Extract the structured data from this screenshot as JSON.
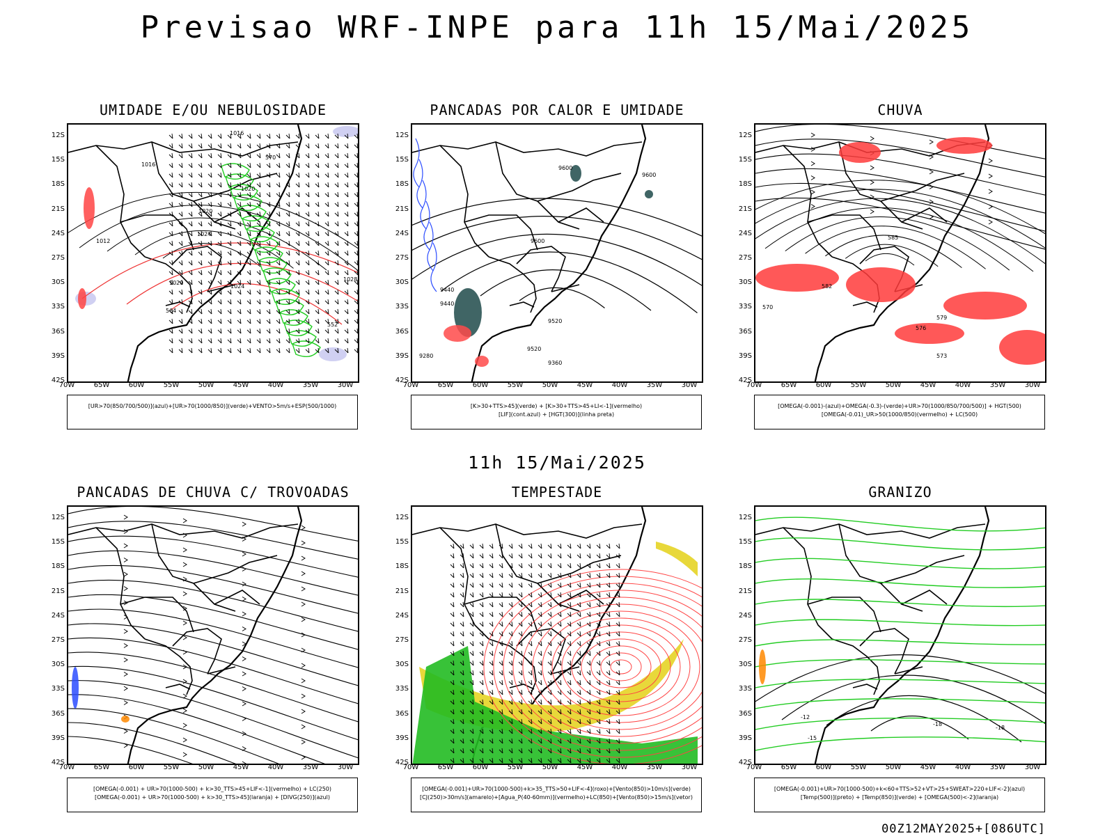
{
  "title": "Previsao WRF-INPE  para 11h 15/Mai/2025",
  "mid_title": "11h 15/Mai/2025",
  "footer": "00Z12MAY2025+[086UTC]",
  "lat_labels": [
    "12S",
    "15S",
    "18S",
    "21S",
    "24S",
    "27S",
    "30S",
    "33S",
    "36S",
    "39S",
    "42S"
  ],
  "lon_labels": [
    "70W",
    "65W",
    "60W",
    "55W",
    "50W",
    "45W",
    "40W",
    "35W",
    "30W"
  ],
  "panels": [
    {
      "title": "UMIDADE E/OU NEBULOSIDADE",
      "legend": [
        "[UR>70(850/700/500)](azul)+[UR>70(1000/850)](verde)+VENTO>5m/s+ESP(500/1000)"
      ],
      "contour_labels": [
        "1016",
        "1016",
        "1020",
        "1020",
        "1024",
        "1024",
        "1012",
        "1020",
        "1028",
        "552",
        "570",
        "564"
      ]
    },
    {
      "title": "PANCADAS POR CALOR E UMIDADE",
      "legend": [
        "[K>30+TTS>45](verde) + [K>30+TTS>45+LI<-1](vermelho)",
        "[LIF](cont.azul) + [HGT(300)](linha preta)"
      ],
      "contour_labels": [
        "9600",
        "9600",
        "9600",
        "9520",
        "9520",
        "9440",
        "9440",
        "9360",
        "9280"
      ]
    },
    {
      "title": "CHUVA",
      "legend": [
        "[OMEGA(-0.001)-(azul)+OMEGA(-0.3)-(verde)+UR>70(1000/850/700/500)] + HGT(500)",
        "[OMEGA(-0.01)_UR>50(1000/850)(vermelho) + LC(500)"
      ],
      "contour_labels": [
        "585",
        "582",
        "579",
        "576",
        "573",
        "570"
      ]
    },
    {
      "title": "PANCADAS DE CHUVA C/ TROVOADAS",
      "legend": [
        "[OMEGA(-0.001) + UR>70(1000-500) + k>30_TTS>45+LIF<-1](vermelho) + LC(250)",
        "[OMEGA(-0.001) + UR>70(1000-500) + k>30_TTS>45](laranja) + [DIVG(250)](azul)"
      ],
      "contour_labels": []
    },
    {
      "title": "TEMPESTADE",
      "legend": [
        "[OMEGA(-0.001)+UR>70(1000-500)+k>35_TTS>50+LIF<-4](roxo)+[Vento(850)>10m/s](verde)",
        "[CJ(250)>30m/s](amarelo)+[Agua_P(40-60mm)](vermelho)+LC(850)+[Vento(850)>15m/s](vetor)"
      ],
      "contour_labels": []
    },
    {
      "title": "GRANIZO",
      "legend": [
        "[OMEGA(-0.001)+UR>70(1000-500)+k<60+TTS>52+VT>25+SWEAT>220+LIF<-2](azul)",
        "[Temp(500)](preto) + [Temp(850)](verde) + [OMEGA(500)<-2](laranja)"
      ],
      "contour_labels": [
        "-12",
        "-15",
        "-18",
        "-18"
      ]
    }
  ]
}
